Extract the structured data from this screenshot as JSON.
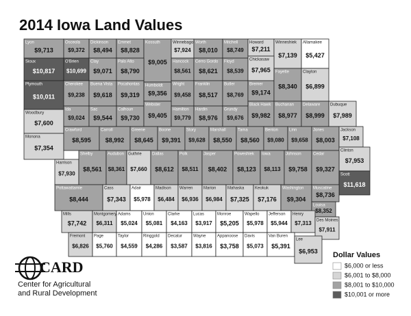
{
  "title": "2014 Iowa Land Values",
  "counties": [
    {
      "name": "Lyon",
      "value": 9713,
      "label": "$9,713"
    },
    {
      "name": "Osceola",
      "value": 9372,
      "label": "$9,372"
    },
    {
      "name": "Dickinson",
      "value": 8494,
      "label": "$8,494"
    },
    {
      "name": "Emmet",
      "value": 8828,
      "label": "$8,828"
    },
    {
      "name": "Kossuth",
      "value": 9005,
      "label": "$9,005"
    },
    {
      "name": "Winnebago",
      "value": 7924,
      "label": "$7,924"
    },
    {
      "name": "Worth",
      "value": 8010,
      "label": "$8,010"
    },
    {
      "name": "Mitchell",
      "value": 8749,
      "label": "$8,749"
    },
    {
      "name": "Howard",
      "value": 7211,
      "label": "$7,211"
    },
    {
      "name": "Winneshiek",
      "value": 7139,
      "label": "$7,139"
    },
    {
      "name": "Allamakee",
      "value": 5427,
      "label": "$5,427"
    },
    {
      "name": "Sioux",
      "value": 10817,
      "label": "$10,817"
    },
    {
      "name": "O'Brien",
      "value": 10699,
      "label": "$10,699"
    },
    {
      "name": "Clay",
      "value": 9071,
      "label": "$9,071"
    },
    {
      "name": "Palo Alto",
      "value": 8790,
      "label": "$8,790"
    },
    {
      "name": "Hancock",
      "value": 8561,
      "label": "$8,561"
    },
    {
      "name": "Cerro Gordo",
      "value": 8621,
      "label": "$8,621"
    },
    {
      "name": "Floyd",
      "value": 8539,
      "label": "$8,539"
    },
    {
      "name": "Chickasaw",
      "value": 7965,
      "label": "$7,965"
    },
    {
      "name": "Plymouth",
      "value": 10011,
      "label": "$10,011"
    },
    {
      "name": "Cherokee",
      "value": 9238,
      "label": "$9,238"
    },
    {
      "name": "Buena Vista",
      "value": 9618,
      "label": "$9,618"
    },
    {
      "name": "Pocahontas",
      "value": 9319,
      "label": "$9,319"
    },
    {
      "name": "Humboldt",
      "value": 9356,
      "label": "$9,356"
    },
    {
      "name": "Wright",
      "value": 9458,
      "label": "$9,458"
    },
    {
      "name": "Franklin",
      "value": 8517,
      "label": "$8,517"
    },
    {
      "name": "Butler",
      "value": 8769,
      "label": "$8,769"
    },
    {
      "name": "Bremer",
      "value": 9174,
      "label": "$9,174"
    },
    {
      "name": "Fayette",
      "value": 8340,
      "label": "$8,340"
    },
    {
      "name": "Clayton",
      "value": 6899,
      "label": "$6,899"
    },
    {
      "name": "Woodbury",
      "value": 7600,
      "label": "$7,600"
    },
    {
      "name": "Ida",
      "value": 9024,
      "label": "$9,024"
    },
    {
      "name": "Sac",
      "value": 9544,
      "label": "$9,544"
    },
    {
      "name": "Calhoun",
      "value": 9730,
      "label": "$9,730"
    },
    {
      "name": "Webster",
      "value": 9405,
      "label": "$9,405"
    },
    {
      "name": "Hamilton",
      "value": 9779,
      "label": "$9,779"
    },
    {
      "name": "Hardin",
      "value": 8976,
      "label": "$8,976"
    },
    {
      "name": "Grundy",
      "value": 9676,
      "label": "$9,676"
    },
    {
      "name": "Black Hawk",
      "value": 9982,
      "label": "$9,982"
    },
    {
      "name": "Buchanan",
      "value": 8977,
      "label": "$8,977"
    },
    {
      "name": "Delaware",
      "value": 8999,
      "label": "$8,999"
    },
    {
      "name": "Dubuque",
      "value": 7989,
      "label": "$7,989"
    },
    {
      "name": "Monona",
      "value": 7354,
      "label": "$7,354"
    },
    {
      "name": "Crawford",
      "value": 8595,
      "label": "$8,595"
    },
    {
      "name": "Carroll",
      "value": 8992,
      "label": "$8,992"
    },
    {
      "name": "Greene",
      "value": 8645,
      "label": "$8,645"
    },
    {
      "name": "Boone",
      "value": 9391,
      "label": "$9,391"
    },
    {
      "name": "Story",
      "value": 9628,
      "label": "$9,628"
    },
    {
      "name": "Marshall",
      "value": 8550,
      "label": "$8,550"
    },
    {
      "name": "Tama",
      "value": 8560,
      "label": "$8,560"
    },
    {
      "name": "Benton",
      "value": 9080,
      "label": "$9,080"
    },
    {
      "name": "Linn",
      "value": 9658,
      "label": "$9,658"
    },
    {
      "name": "Jones",
      "value": 8003,
      "label": "$8,003"
    },
    {
      "name": "Jackson",
      "value": 7108,
      "label": "$7,108"
    },
    {
      "name": "Clinton",
      "value": 7953,
      "label": "$7,953"
    },
    {
      "name": "Harrison",
      "value": 7930,
      "label": "$7,930"
    },
    {
      "name": "Shelby",
      "value": 8561,
      "label": "$8,561"
    },
    {
      "name": "Audubon",
      "value": 8361,
      "label": "$8,361"
    },
    {
      "name": "Guthrie",
      "value": 7660,
      "label": "$7,660"
    },
    {
      "name": "Dallas",
      "value": 8612,
      "label": "$8,612"
    },
    {
      "name": "Polk",
      "value": 8511,
      "label": "$8,511"
    },
    {
      "name": "Jasper",
      "value": 8402,
      "label": "$8,402"
    },
    {
      "name": "Poweshiek",
      "value": 8123,
      "label": "$8,123"
    },
    {
      "name": "Iowa",
      "value": 8113,
      "label": "$8,113"
    },
    {
      "name": "Johnson",
      "value": 9758,
      "label": "$9,758"
    },
    {
      "name": "Cedar",
      "value": 9327,
      "label": "$9,327"
    },
    {
      "name": "Scott",
      "value": 11618,
      "label": "$11,618"
    },
    {
      "name": "Pottawattamie",
      "value": 8444,
      "label": "$8,444"
    },
    {
      "name": "Cass",
      "value": 7343,
      "label": "$7,343"
    },
    {
      "name": "Adair",
      "value": 5978,
      "label": "$5,978"
    },
    {
      "name": "Madison",
      "value": 6484,
      "label": "$6,484"
    },
    {
      "name": "Warren",
      "value": 6936,
      "label": "$6,936"
    },
    {
      "name": "Marion",
      "value": 6984,
      "label": "$6,984"
    },
    {
      "name": "Mahaska",
      "value": 7325,
      "label": "$7,325"
    },
    {
      "name": "Keokuk",
      "value": 7176,
      "label": "$7,176"
    },
    {
      "name": "Washington",
      "value": 9304,
      "label": "$9,304"
    },
    {
      "name": "Muscatine",
      "value": 8736,
      "label": "$8,736"
    },
    {
      "name": "Louisa",
      "value": 8352,
      "label": "$8,352"
    },
    {
      "name": "Mills",
      "value": 7742,
      "label": "$7,742"
    },
    {
      "name": "Montgomery",
      "value": 6311,
      "label": "$6,311"
    },
    {
      "name": "Adams",
      "value": 5024,
      "label": "$5,024"
    },
    {
      "name": "Union",
      "value": 5081,
      "label": "$5,081"
    },
    {
      "name": "Clarke",
      "value": 4163,
      "label": "$4,163"
    },
    {
      "name": "Lucas",
      "value": 3917,
      "label": "$3,917"
    },
    {
      "name": "Monroe",
      "value": 5205,
      "label": "$5,205"
    },
    {
      "name": "Wapello",
      "value": 5978,
      "label": "$5,978"
    },
    {
      "name": "Jefferson",
      "value": 5944,
      "label": "$5,944"
    },
    {
      "name": "Henry",
      "value": 7313,
      "label": "$7,313"
    },
    {
      "name": "Des Moines",
      "value": 7911,
      "label": "$7,911"
    },
    {
      "name": "Fremont",
      "value": 6826,
      "label": "$6,826"
    },
    {
      "name": "Page",
      "value": 5760,
      "label": "$5,760"
    },
    {
      "name": "Taylor",
      "value": 4559,
      "label": "$4,559"
    },
    {
      "name": "Ringgold",
      "value": 4286,
      "label": "$4,286"
    },
    {
      "name": "Decatur",
      "value": 3587,
      "label": "$3,587"
    },
    {
      "name": "Wayne",
      "value": 3816,
      "label": "$3,816"
    },
    {
      "name": "Appanoose",
      "value": 3758,
      "label": "$3,758"
    },
    {
      "name": "Davis",
      "value": 5073,
      "label": "$5,073"
    },
    {
      "name": "Van Buren",
      "value": 5391,
      "label": "$5,391"
    },
    {
      "name": "Lee",
      "value": 6953,
      "label": "$6,953"
    }
  ],
  "legend": {
    "title": "Dollar Values",
    "items": [
      {
        "label": "$6,000 or less",
        "color": "#ffffff",
        "max": 6000
      },
      {
        "label": "$6,001 to $8,000",
        "color": "#d6d6d6",
        "max": 8000
      },
      {
        "label": "$8,001 to $10,000",
        "color": "#a3a3a3",
        "max": 10000
      },
      {
        "label": "$10,001 or more",
        "color": "#5c5c5c",
        "max": null
      }
    ]
  },
  "logo": {
    "acronym": "CARD",
    "line1": "Center for Agricultural",
    "line2": "and Rural Development"
  }
}
